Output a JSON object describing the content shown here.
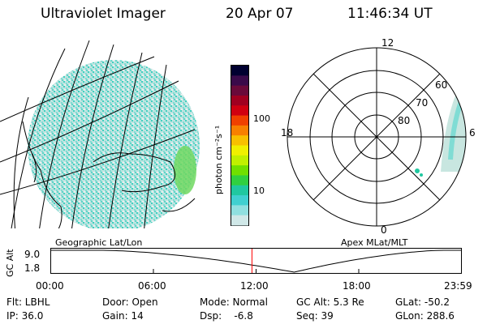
{
  "header": {
    "title": "Ultraviolet Imager",
    "date": "20 Apr 07",
    "time": "11:46:34 UT"
  },
  "colorbar": {
    "unit_label": "photon cm⁻²s⁻¹",
    "ticks": [
      "100",
      "10"
    ],
    "colors": [
      "#000030",
      "#3a0a4a",
      "#6a0a3a",
      "#a00020",
      "#d00010",
      "#f04000",
      "#f88000",
      "#f8c000",
      "#f0f000",
      "#c0f000",
      "#70e000",
      "#30d040",
      "#20c8a0",
      "#40d0d0",
      "#90e0e0",
      "#d0e8e8"
    ]
  },
  "geo_panel": {
    "caption": "Geographic Lat/Lon"
  },
  "polar_panel": {
    "caption": "Apex MLat/MLT",
    "mlt_labels": {
      "top": "12",
      "left": "18",
      "right": "6",
      "bottom": "0"
    },
    "lat_labels": [
      "80",
      "70",
      "60"
    ]
  },
  "altitude_plot": {
    "ylabel": "GC Alt",
    "yticks": [
      "9.0",
      "1.8"
    ],
    "xticks": [
      "00:00",
      "06:00",
      "12:00",
      "18:00",
      "23:59"
    ],
    "current_time_marker": "11:47",
    "marker_color": "#ff0000"
  },
  "footer": {
    "flt": "Flt: LBHL",
    "ip": "IP: 36.0",
    "door": "Door: Open",
    "gain": "Gain: 14",
    "mode": "Mode: Normal",
    "dsp": "Dsp:    -6.8",
    "gcalt": "GC Alt: 5.3 Re",
    "seq": "Seq: 39",
    "glat": "GLat: -50.2",
    "glon": "GLon: 288.6"
  }
}
